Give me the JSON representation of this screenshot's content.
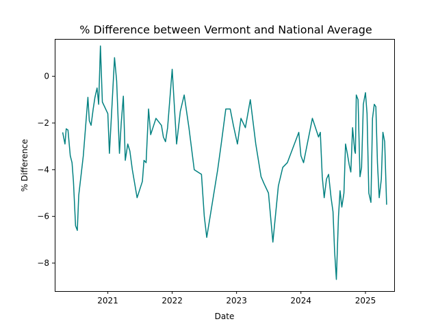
{
  "chart_data": {
    "type": "line",
    "title": "% Difference between Vermont and National Average",
    "xlabel": "Date",
    "ylabel": "% Difference",
    "x_axis_type": "date",
    "xlim": [
      "2020-03-06",
      "2025-06-13"
    ],
    "ylim": [
      -9.2,
      1.6
    ],
    "x_ticks": [
      {
        "date": "2021-01-01",
        "label": "2021"
      },
      {
        "date": "2022-01-01",
        "label": "2022"
      },
      {
        "date": "2023-01-01",
        "label": "2023"
      },
      {
        "date": "2024-01-01",
        "label": "2024"
      },
      {
        "date": "2025-01-01",
        "label": "2025"
      }
    ],
    "y_ticks": [
      0,
      -2,
      -4,
      -6,
      -8
    ],
    "grid": false,
    "line_color": "#008080",
    "series": [
      {
        "x": [
          "2020-04-20",
          "2020-05-03",
          "2020-05-10",
          "2020-05-20",
          "2020-06-02",
          "2020-06-12",
          "2020-06-20",
          "2020-07-02",
          "2020-07-12",
          "2020-07-20",
          "2020-08-15",
          "2020-09-10",
          "2020-09-18",
          "2020-09-28",
          "2020-10-10",
          "2020-10-20",
          "2020-11-01",
          "2020-11-10",
          "2020-11-20",
          "2020-12-01",
          "2021-01-01",
          "2021-01-10",
          "2021-01-25",
          "2021-02-08",
          "2021-02-20",
          "2021-03-08",
          "2021-03-18",
          "2021-03-30",
          "2021-04-10",
          "2021-04-24",
          "2021-05-06",
          "2021-05-20",
          "2021-06-16",
          "2021-07-16",
          "2021-07-25",
          "2021-08-06",
          "2021-08-20",
          "2021-09-01",
          "2021-10-01",
          "2021-11-01",
          "2021-11-12",
          "2021-11-24",
          "2021-12-06",
          "2022-01-01",
          "2022-01-26",
          "2022-02-16",
          "2022-03-10",
          "2022-04-06",
          "2022-05-06",
          "2022-06-16",
          "2022-07-02",
          "2022-07-16",
          "2022-09-16",
          "2022-10-06",
          "2022-11-01",
          "2022-11-26",
          "2022-12-14",
          "2023-01-06",
          "2023-01-26",
          "2023-02-20",
          "2023-03-20",
          "2023-04-20",
          "2023-05-20",
          "2023-06-06",
          "2023-07-01",
          "2023-07-26",
          "2023-08-26",
          "2023-09-20",
          "2023-10-16",
          "2023-12-20",
          "2024-01-01",
          "2024-01-16",
          "2024-02-06",
          "2024-03-06",
          "2024-04-10",
          "2024-04-20",
          "2024-05-01",
          "2024-05-12",
          "2024-05-25",
          "2024-06-06",
          "2024-06-20",
          "2024-07-01",
          "2024-07-10",
          "2024-07-20",
          "2024-08-01",
          "2024-08-10",
          "2024-08-20",
          "2024-09-01",
          "2024-09-10",
          "2024-09-20",
          "2024-10-01",
          "2024-10-10",
          "2024-10-20",
          "2024-11-01",
          "2024-11-05",
          "2024-11-10",
          "2024-11-20",
          "2024-12-01",
          "2024-12-10",
          "2024-12-20",
          "2025-01-01",
          "2025-01-10",
          "2025-01-20",
          "2025-02-01",
          "2025-02-10",
          "2025-02-20",
          "2025-03-01",
          "2025-03-10",
          "2025-03-20",
          "2025-04-01",
          "2025-04-10",
          "2025-04-20",
          "2025-05-01"
        ],
        "y": [
          -2.4,
          -2.9,
          -2.25,
          -2.3,
          -3.4,
          -3.7,
          -4.5,
          -6.4,
          -6.6,
          -5.1,
          -3.4,
          -0.9,
          -1.9,
          -2.1,
          -1.4,
          -0.9,
          -0.5,
          -1.2,
          1.3,
          -1.1,
          -1.6,
          -3.3,
          -1.2,
          0.8,
          -0.2,
          -3.3,
          -2.0,
          -0.85,
          -3.6,
          -2.9,
          -3.2,
          -4.0,
          -5.2,
          -4.5,
          -3.6,
          -3.7,
          -1.4,
          -2.5,
          -1.8,
          -2.1,
          -2.6,
          -2.8,
          -2.2,
          0.3,
          -2.9,
          -1.5,
          -0.8,
          -2.2,
          -4.0,
          -4.2,
          -6.0,
          -6.9,
          -4.0,
          -2.9,
          -1.4,
          -1.4,
          -2.1,
          -2.9,
          -1.8,
          -2.2,
          -1.0,
          -2.9,
          -4.3,
          -4.6,
          -5.0,
          -7.1,
          -4.7,
          -3.9,
          -3.7,
          -2.4,
          -3.4,
          -3.7,
          -2.9,
          -1.8,
          -2.6,
          -2.4,
          -4.3,
          -5.2,
          -4.4,
          -4.2,
          -5.2,
          -5.8,
          -7.5,
          -8.7,
          -6.0,
          -4.9,
          -5.6,
          -5.0,
          -2.9,
          -3.3,
          -3.8,
          -4.1,
          -2.2,
          -3.2,
          -3.3,
          -0.8,
          -1.0,
          -4.3,
          -3.9,
          -1.2,
          -0.7,
          -1.6,
          -5.0,
          -5.4,
          -1.8,
          -1.2,
          -1.3,
          -3.7,
          -5.2,
          -4.4,
          -2.4,
          -2.8,
          -5.5
        ]
      }
    ]
  }
}
